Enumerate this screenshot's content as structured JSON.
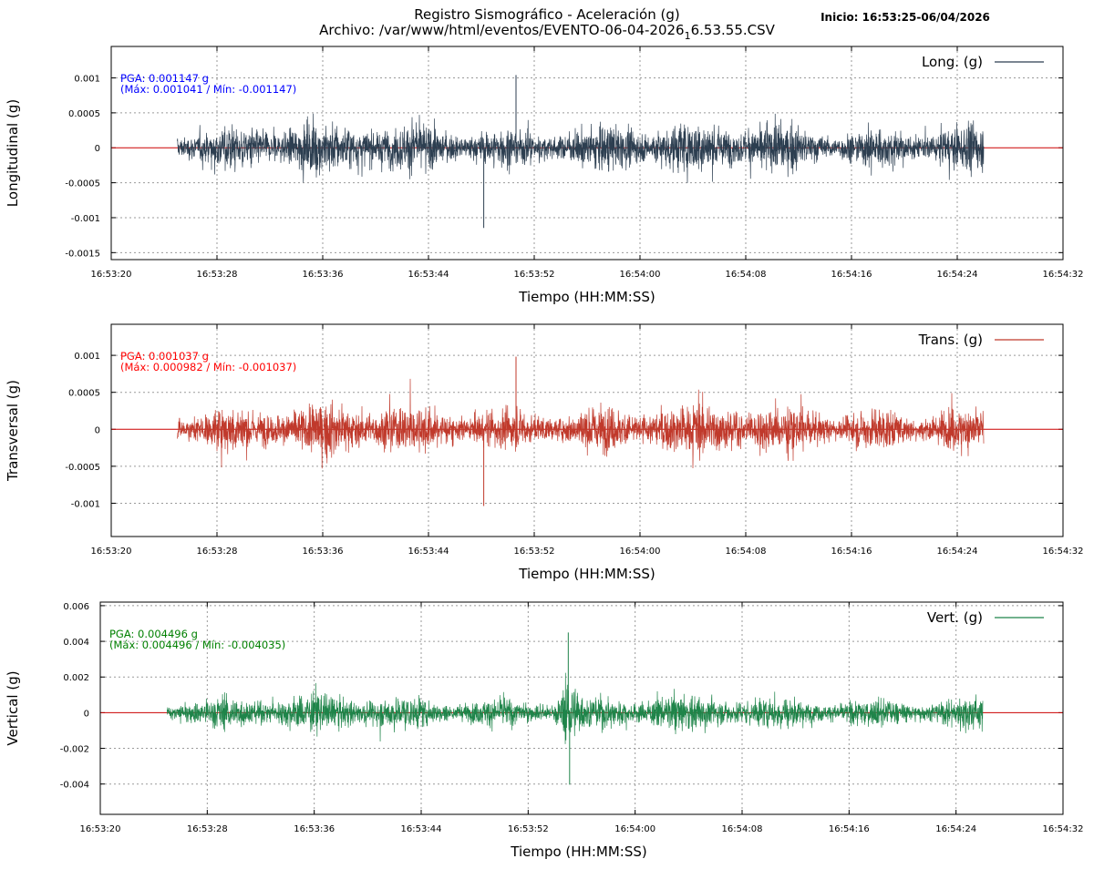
{
  "header": {
    "title_line1": "Registro Sismográfico - Aceleración (g)",
    "title_line2_prefix": "Archivo: /var/www/html/eventos/EVENTO-06-04-2026",
    "title_line2_sub": "1",
    "title_line2_suffix": "6.53.55.CSV",
    "start_label": "Inicio: 16:53:25-06/04/2026"
  },
  "chart_data": [
    {
      "type": "line",
      "ylabel": "Longitudinal (g)",
      "xlabel": "Tiempo (HH:MM:SS)",
      "legend": "Long. (g)",
      "legend_position": "top-right",
      "grid": true,
      "color": "#2c3e50",
      "zero_line_color": "#cc0000",
      "annotation_color": "#0000ff",
      "annotation_line1": "PGA: 0.001147 g",
      "annotation_line2": "(Máx: 0.001041 / Mín: -0.001147)",
      "xlim": [
        "16:53:20",
        "16:54:32"
      ],
      "ylim": [
        -0.0016,
        0.00145
      ],
      "x_ticks": [
        "16:53:20",
        "16:53:28",
        "16:53:36",
        "16:53:44",
        "16:53:52",
        "16:54:00",
        "16:54:08",
        "16:54:16",
        "16:54:24",
        "16:54:32"
      ],
      "y_ticks": [
        "0.001",
        "0.0005",
        "0",
        "-0.0005",
        "-0.001",
        "-0.0015"
      ],
      "y_tick_values": [
        0.001,
        0.0005,
        0,
        -0.0005,
        -0.001,
        -0.0015
      ],
      "signal_start": "16:53:25",
      "signal_end": "16:54:26",
      "typical_amplitude": 0.0004,
      "peak_max": 0.001041,
      "peak_min": -0.001147,
      "events": []
    },
    {
      "type": "line",
      "ylabel": "Transversal (g)",
      "xlabel": "Tiempo (HH:MM:SS)",
      "legend": "Trans. (g)",
      "legend_position": "top-right",
      "grid": true,
      "color": "#c0392b",
      "zero_line_color": "#cc0000",
      "annotation_color": "#ff0000",
      "annotation_line1": "PGA: 0.001037 g",
      "annotation_line2": "(Máx: 0.000982 / Mín: -0.001037)",
      "xlim": [
        "16:53:20",
        "16:54:32"
      ],
      "ylim": [
        -0.00145,
        0.00142
      ],
      "x_ticks": [
        "16:53:20",
        "16:53:28",
        "16:53:36",
        "16:53:44",
        "16:53:52",
        "16:54:00",
        "16:54:08",
        "16:54:16",
        "16:54:24",
        "16:54:32"
      ],
      "y_ticks": [
        "0.001",
        "0.0005",
        "0",
        "-0.0005",
        "-0.001"
      ],
      "y_tick_values": [
        0.001,
        0.0005,
        0,
        -0.0005,
        -0.001
      ],
      "signal_start": "16:53:25",
      "signal_end": "16:54:26",
      "typical_amplitude": 0.00038,
      "peak_max": 0.000982,
      "peak_min": -0.001037,
      "events": []
    },
    {
      "type": "line",
      "ylabel": "Vertical (g)",
      "xlabel": "Tiempo (HH:MM:SS)",
      "legend": "Vert. (g)",
      "legend_position": "top-right",
      "grid": true,
      "color": "#1e8449",
      "zero_line_color": "#cc0000",
      "annotation_color": "#008000",
      "annotation_line1": "PGA: 0.004496 g",
      "annotation_line2": "(Máx: 0.004496 / Mín: -0.004035)",
      "xlim": [
        "16:53:20",
        "16:54:32"
      ],
      "ylim": [
        -0.0057,
        0.0062
      ],
      "x_ticks": [
        "16:53:20",
        "16:53:28",
        "16:53:36",
        "16:53:44",
        "16:53:52",
        "16:54:00",
        "16:54:08",
        "16:54:16",
        "16:54:24",
        "16:54:32"
      ],
      "y_ticks": [
        "0.006",
        "0.004",
        "0.002",
        "0",
        "-0.002",
        "-0.004"
      ],
      "y_tick_values": [
        0.006,
        0.004,
        0.002,
        0,
        -0.002,
        -0.004
      ],
      "signal_start": "16:53:25",
      "signal_end": "16:54:26",
      "typical_amplitude": 0.0011,
      "peak_max": 0.004496,
      "peak_min": -0.004035,
      "events": [
        {
          "time": "16:53:55",
          "peak_max": 0.004496,
          "peak_min": -0.004035
        }
      ]
    }
  ]
}
